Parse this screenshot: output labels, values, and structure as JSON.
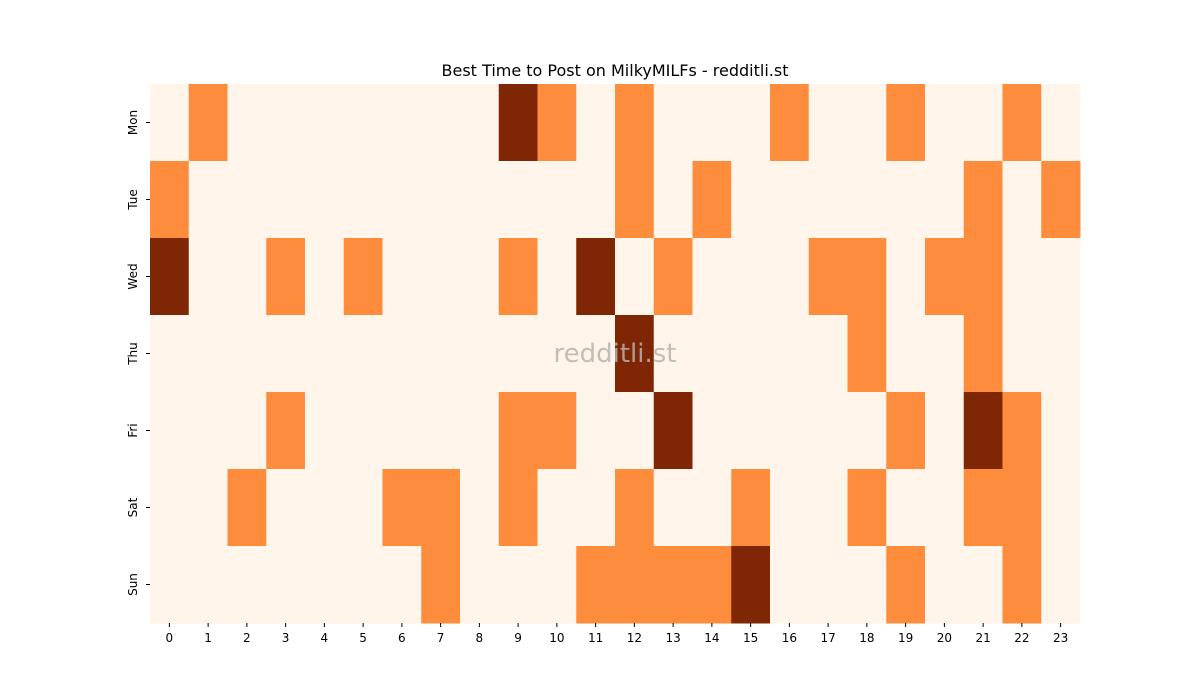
{
  "chart_data": {
    "type": "heatmap",
    "title": "Best Time to Post on MilkyMILFs - redditli.st",
    "watermark": "redditli.st",
    "xlabel": "",
    "ylabel": "",
    "x": [
      "0",
      "1",
      "2",
      "3",
      "4",
      "5",
      "6",
      "7",
      "8",
      "9",
      "10",
      "11",
      "12",
      "13",
      "14",
      "15",
      "16",
      "17",
      "18",
      "19",
      "20",
      "21",
      "22",
      "23"
    ],
    "y": [
      "Mon",
      "Tue",
      "Wed",
      "Thu",
      "Fri",
      "Sat",
      "Sun"
    ],
    "values": [
      [
        0,
        1,
        0,
        0,
        0,
        0,
        0,
        0,
        0,
        2,
        1,
        0,
        1,
        0,
        0,
        0,
        1,
        0,
        0,
        1,
        0,
        0,
        1,
        0
      ],
      [
        1,
        0,
        0,
        0,
        0,
        0,
        0,
        0,
        0,
        0,
        0,
        0,
        1,
        0,
        1,
        0,
        0,
        0,
        0,
        0,
        0,
        1,
        0,
        1
      ],
      [
        2,
        0,
        0,
        1,
        0,
        1,
        0,
        0,
        0,
        1,
        0,
        2,
        0,
        1,
        0,
        0,
        0,
        1,
        1,
        0,
        1,
        1,
        0,
        0
      ],
      [
        0,
        0,
        0,
        0,
        0,
        0,
        0,
        0,
        0,
        0,
        0,
        0,
        2,
        0,
        0,
        0,
        0,
        0,
        1,
        0,
        0,
        1,
        0,
        0
      ],
      [
        0,
        0,
        0,
        1,
        0,
        0,
        0,
        0,
        0,
        1,
        1,
        0,
        0,
        2,
        0,
        0,
        0,
        0,
        0,
        1,
        0,
        2,
        1,
        0
      ],
      [
        0,
        0,
        1,
        0,
        0,
        0,
        1,
        1,
        0,
        1,
        0,
        0,
        1,
        0,
        0,
        1,
        0,
        0,
        1,
        0,
        0,
        1,
        1,
        0
      ],
      [
        0,
        0,
        0,
        0,
        0,
        0,
        0,
        1,
        0,
        0,
        0,
        1,
        1,
        1,
        1,
        2,
        0,
        0,
        0,
        1,
        0,
        0,
        1,
        0
      ]
    ],
    "colors": [
      "#fff5eb",
      "#fd8d3c",
      "#7f2704"
    ],
    "colormap": "Oranges",
    "grid": false,
    "colorbar": false
  }
}
